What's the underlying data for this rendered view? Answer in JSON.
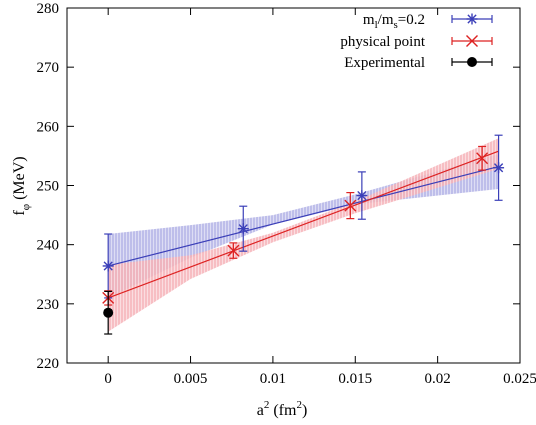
{
  "chart_data": {
    "type": "scatter",
    "xlabel": "a² (fm²)",
    "ylabel": "f_φ (MeV)",
    "xlim": [
      -0.0025,
      0.025
    ],
    "ylim": [
      220,
      280
    ],
    "xticks": [
      0,
      0.005,
      0.01,
      0.015,
      0.02,
      0.025
    ],
    "xtick_labels": [
      "0",
      "0.005",
      "0.01",
      "0.015",
      "0.02",
      "0.025"
    ],
    "yticks": [
      220,
      230,
      240,
      250,
      260,
      270,
      280
    ],
    "ytick_labels": [
      "220",
      "230",
      "240",
      "250",
      "260",
      "270",
      "280"
    ],
    "grid": false,
    "legend_position": "top-right",
    "series": [
      {
        "name": "m_l/m_s=0.2",
        "legend_main": "m",
        "legend_sub1": "l",
        "legend_mid": "/m",
        "legend_sub2": "s",
        "legend_tail": "=0.2",
        "marker": "asterisk",
        "color": "#3b3fb8",
        "band_color": "#b3b3e6",
        "x": [
          0,
          0.0082,
          0.0154,
          0.0237
        ],
        "y": [
          236.4,
          242.7,
          248.3,
          253.0
        ],
        "yerr": [
          5.4,
          3.8,
          4.0,
          5.5
        ],
        "fit_line": [
          [
            0,
            236.4
          ],
          [
            0.0237,
            253.2
          ]
        ],
        "fit_band_upper": [
          [
            0,
            241.8
          ],
          [
            0.005,
            243.3
          ],
          [
            0.01,
            245.0
          ],
          [
            0.015,
            248.5
          ],
          [
            0.0237,
            255.3
          ]
        ],
        "fit_band_lower": [
          [
            0,
            231.0
          ],
          [
            0.005,
            237.8
          ],
          [
            0.01,
            243.4
          ],
          [
            0.015,
            246.8
          ],
          [
            0.0237,
            249.4
          ]
        ]
      },
      {
        "name": "physical point",
        "marker": "cross",
        "color": "#dd2222",
        "band_color": "#f6b3b8",
        "x": [
          0,
          0.0076,
          0.0147,
          0.0227
        ],
        "y": [
          231.0,
          239.0,
          246.6,
          254.6
        ],
        "yerr": [
          1.2,
          1.3,
          2.2,
          2.0
        ],
        "fit_line": [
          [
            0,
            231.0
          ],
          [
            0.0237,
            255.8
          ]
        ],
        "fit_band_upper": [
          [
            0,
            236.6
          ],
          [
            0.005,
            238.2
          ],
          [
            0.01,
            242.0
          ],
          [
            0.015,
            247.3
          ],
          [
            0.0237,
            258.0
          ]
        ],
        "fit_band_lower": [
          [
            0,
            225.3
          ],
          [
            0.005,
            234.2
          ],
          [
            0.01,
            240.4
          ],
          [
            0.015,
            245.3
          ],
          [
            0.0237,
            252.8
          ]
        ]
      },
      {
        "name": "Experimental",
        "marker": "circle",
        "color": "#000000",
        "x": [
          0
        ],
        "y": [
          228.5
        ],
        "yerr": [
          3.6
        ]
      }
    ]
  }
}
